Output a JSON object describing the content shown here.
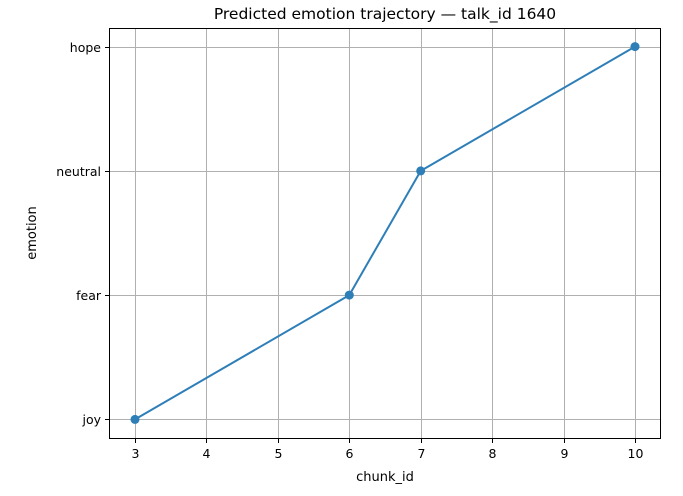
{
  "chart_data": {
    "type": "line",
    "title": "Predicted emotion trajectory — talk_id 1640",
    "xlabel": "chunk_id",
    "ylabel": "emotion",
    "x_ticks": [
      3,
      4,
      5,
      6,
      7,
      8,
      9,
      10
    ],
    "y_categories": [
      "joy",
      "fear",
      "neutral",
      "hope"
    ],
    "xlim": [
      2.65,
      10.35
    ],
    "grid": true,
    "marker": "circle",
    "line_color": "#2e7eb8",
    "series": [
      {
        "x": [
          3,
          6,
          7,
          10
        ],
        "y": [
          "joy",
          "fear",
          "neutral",
          "hope"
        ]
      }
    ]
  }
}
